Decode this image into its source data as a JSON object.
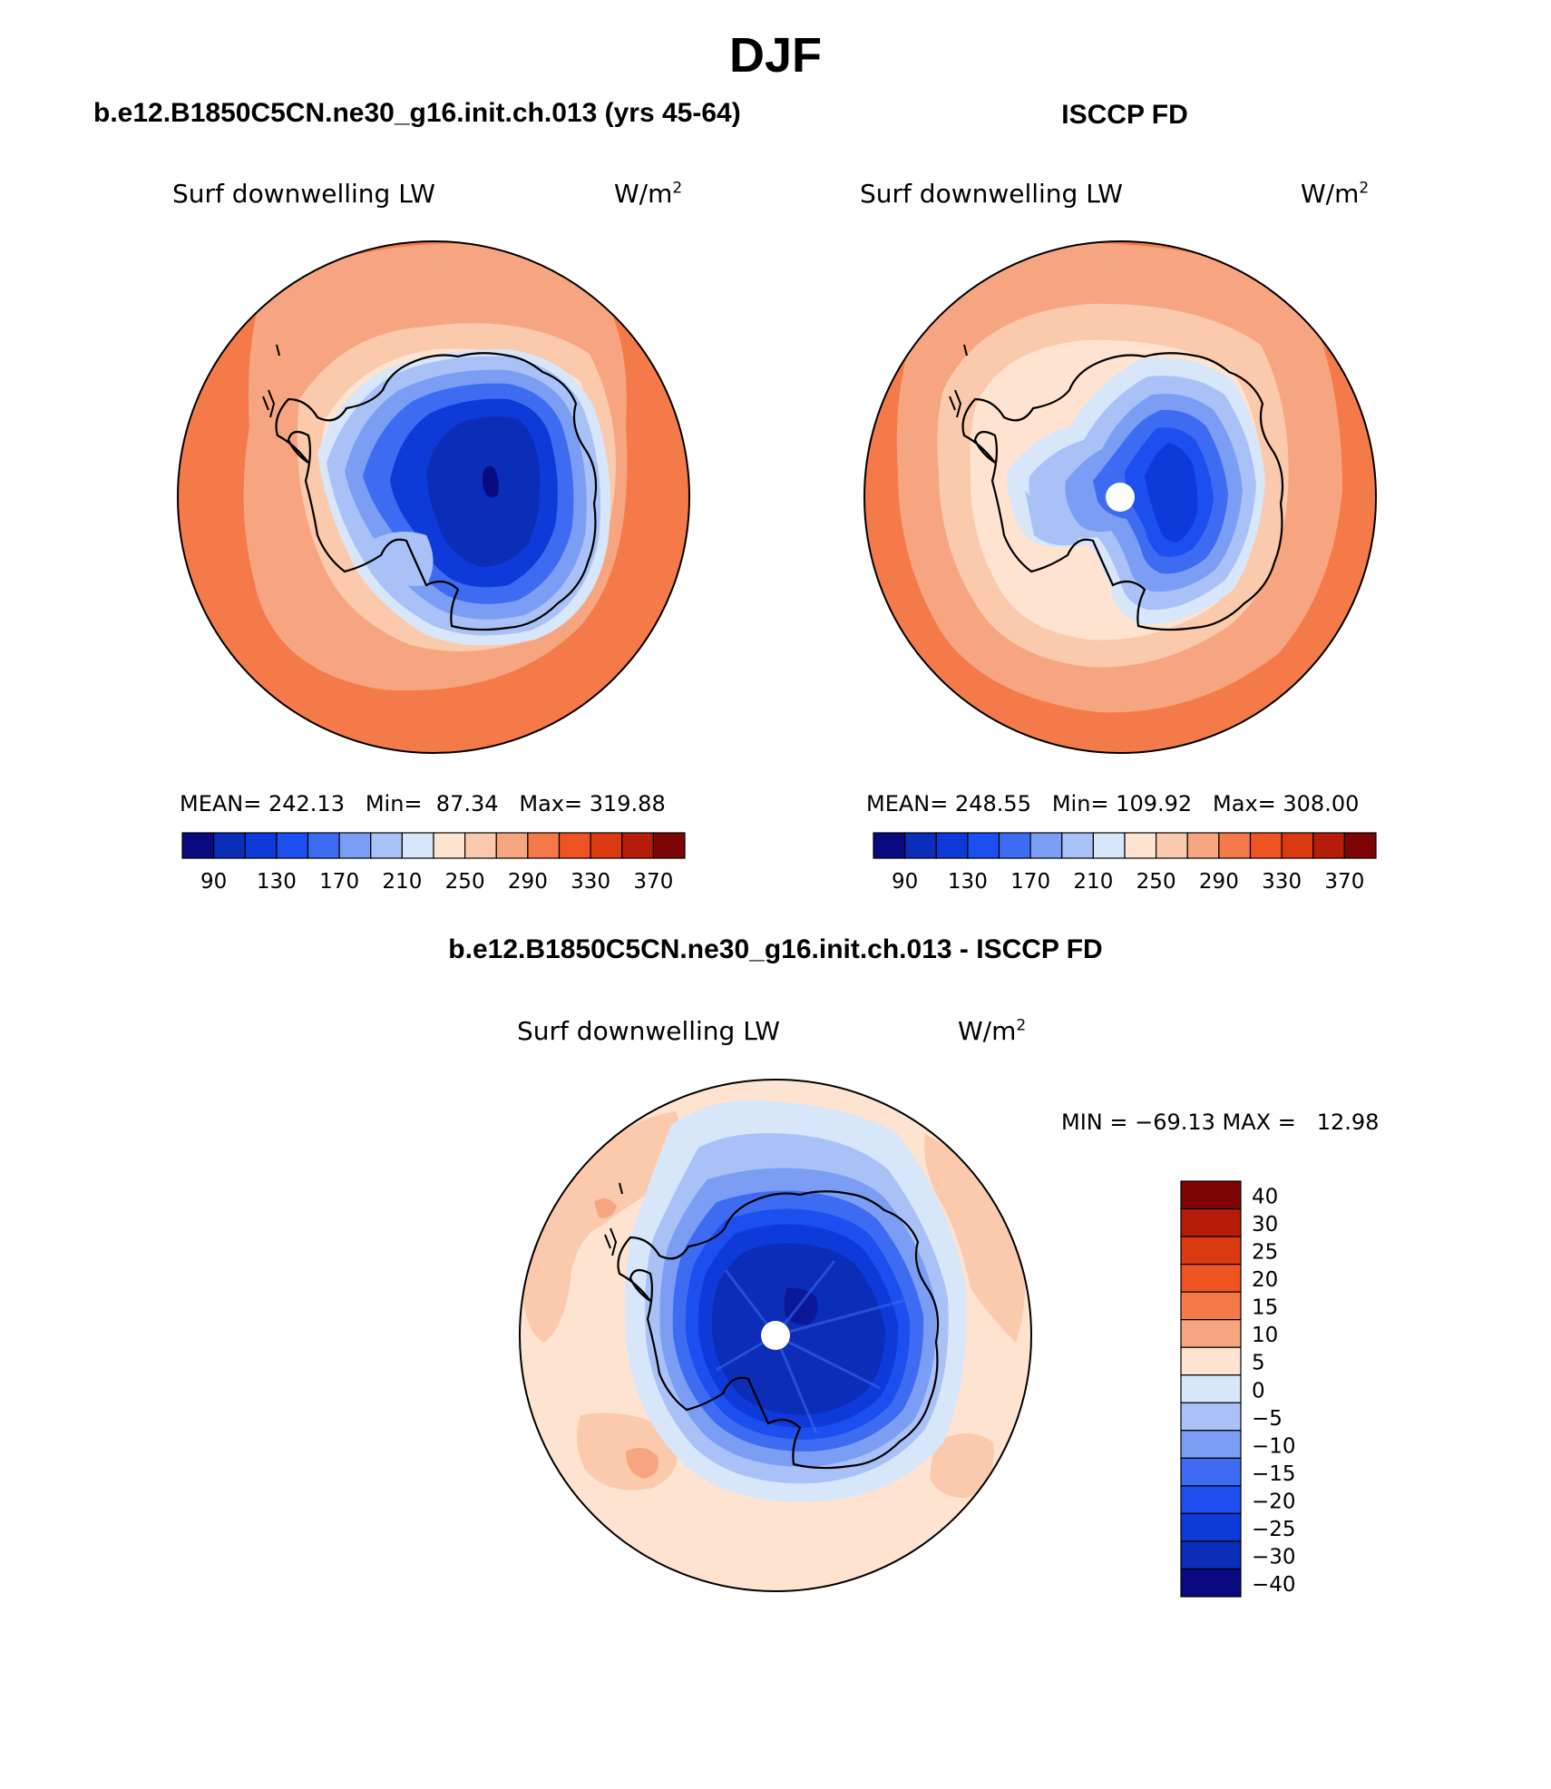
{
  "figure": {
    "season": "DJF"
  },
  "panels": [
    {
      "id": "model",
      "title": "b.e12.B1850C5CN.ne30_g16.init.ch.013 (yrs 45-64)",
      "variable": "Surf downwelling LW",
      "units": "W/m",
      "units_exp": "2",
      "stats": "MEAN= 242.13   Min=  87.34   Max= 319.88",
      "missing_pole": false
    },
    {
      "id": "obs",
      "title": "ISCCP FD",
      "variable": "Surf downwelling LW",
      "units": "W/m",
      "units_exp": "2",
      "stats": "MEAN= 248.55   Min= 109.92   Max= 308.00",
      "missing_pole": true
    },
    {
      "id": "diff",
      "title": "b.e12.B1850C5CN.ne30_g16.init.ch.013 - ISCCP FD",
      "variable": "Surf downwelling LW",
      "units": "W/m",
      "units_exp": "2",
      "stats": "MIN = −69.13 MAX =   12.98",
      "missing_pole": true
    }
  ],
  "colorbars": {
    "absolute": {
      "colors": [
        "#0a0a80",
        "#0b2db8",
        "#0e3ad9",
        "#1c4ef0",
        "#3d6bf2",
        "#7b9df4",
        "#a9c1f6",
        "#d8e6fa",
        "#fde3d0",
        "#fbc9ac",
        "#f7a581",
        "#f47a4a",
        "#ef5322",
        "#db3a10",
        "#b51d0a",
        "#7e0505"
      ],
      "tick_labels": [
        "90",
        "130",
        "170",
        "210",
        "250",
        "290",
        "330",
        "370"
      ]
    },
    "difference": {
      "colors": [
        "#7e0505",
        "#b51d0a",
        "#db3a10",
        "#ef5322",
        "#f47a4a",
        "#f7a581",
        "#fde3d0",
        "#d8e6fa",
        "#a9c1f6",
        "#7b9df4",
        "#3d6bf2",
        "#1c4ef0",
        "#0e3ad9",
        "#0b2db8",
        "#0a0a80"
      ],
      "tick_labels": [
        "40",
        "30",
        "25",
        "20",
        "15",
        "10",
        "5",
        "0",
        "−5",
        "−10",
        "−15",
        "−20",
        "−25",
        "−30",
        "−40"
      ]
    }
  }
}
